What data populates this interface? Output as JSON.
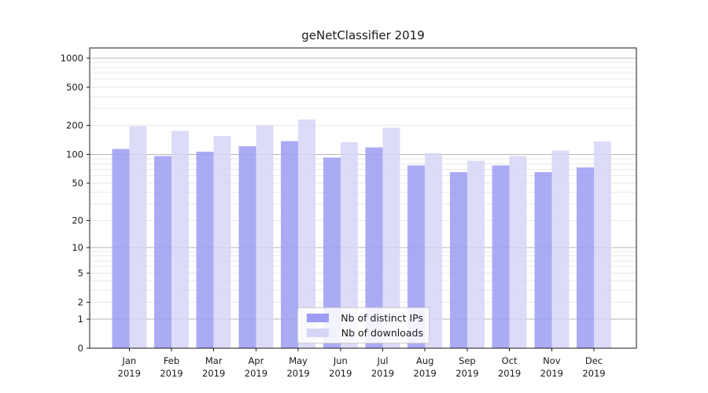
{
  "chart_data": {
    "type": "bar",
    "title": "geNetClassifier 2019",
    "categories": [
      "Jan",
      "Feb",
      "Mar",
      "Apr",
      "May",
      "Jun",
      "Jul",
      "Aug",
      "Sep",
      "Oct",
      "Nov",
      "Dec"
    ],
    "x_sublabel": "2019",
    "series": [
      {
        "name": "Nb of distinct IPs",
        "color": "#9c9cf3",
        "values": [
          114,
          96,
          107,
          122,
          138,
          93,
          118,
          77,
          65,
          77,
          65,
          73
        ]
      },
      {
        "name": "Nb of downloads",
        "color": "#d6d6f7",
        "values": [
          197,
          176,
          155,
          200,
          232,
          134,
          190,
          103,
          86,
          96,
          110,
          136
        ]
      }
    ],
    "yticks": [
      0,
      1,
      2,
      5,
      10,
      20,
      50,
      100,
      200,
      500,
      1000
    ],
    "scale": "log1p",
    "ylim": [
      0,
      1270
    ],
    "xlabel": "",
    "ylabel": "",
    "grid": "on",
    "legend_position": "lower center",
    "colors": {
      "major_grid": "#b5b5b5",
      "minor_grid": "#e9e9e9",
      "axis": "#1a1a1a",
      "text": "#1a1a1a"
    }
  }
}
